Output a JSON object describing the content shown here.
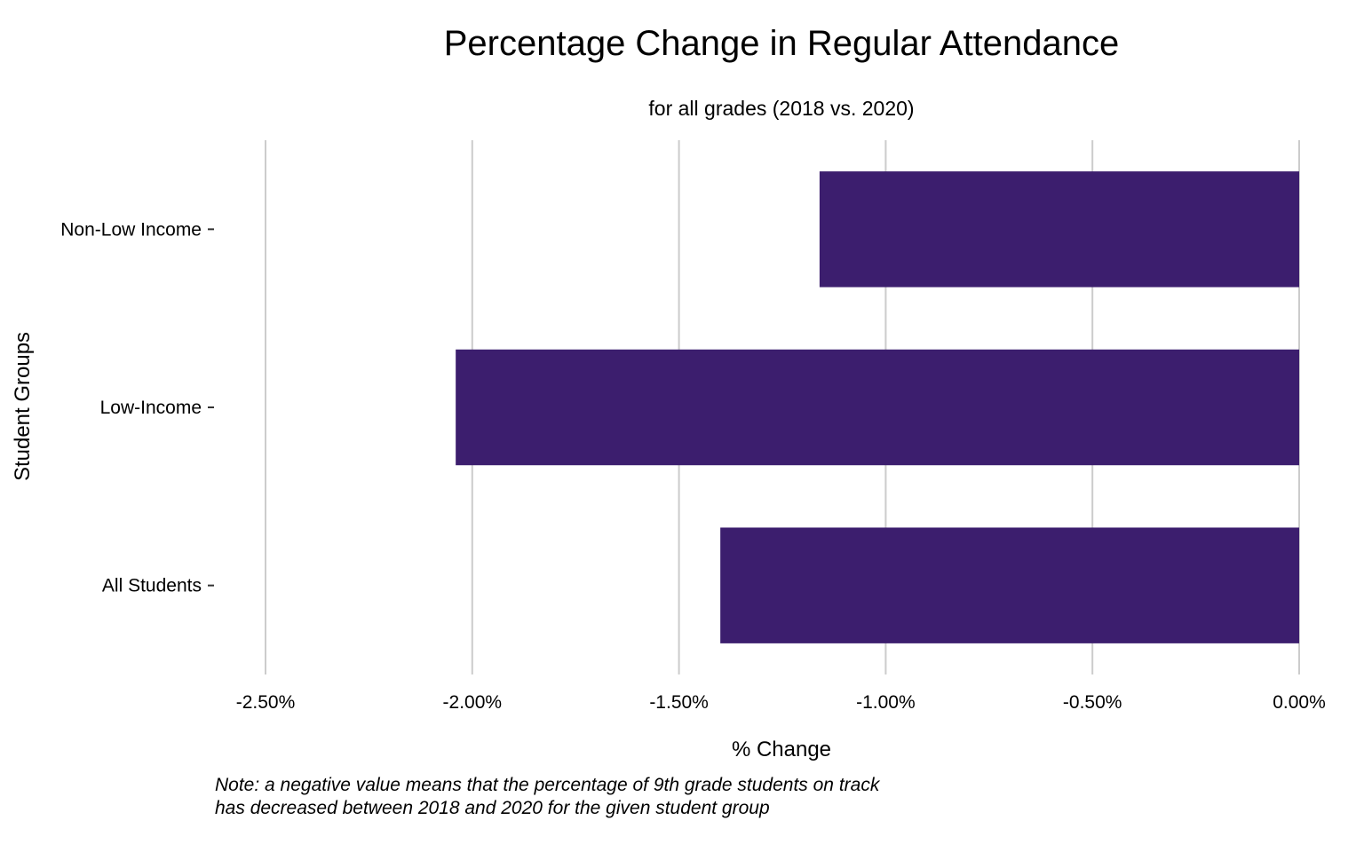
{
  "chart_data": {
    "type": "bar",
    "orientation": "horizontal",
    "title": "Percentage Change in Regular Attendance",
    "subtitle": "for all grades (2018 vs. 2020)",
    "xlabel": "% Change",
    "ylabel": "Student Groups",
    "categories": [
      "Non-Low Income",
      "Low-Income",
      "All Students"
    ],
    "values": [
      -1.16,
      -2.04,
      -1.4
    ],
    "xlim": [
      -2.5,
      0
    ],
    "x_ticks": [
      -2.5,
      -2.0,
      -1.5,
      -1.0,
      -0.5,
      0.0
    ],
    "x_tick_labels": [
      "-2.50%",
      "-2.00%",
      "-1.50%",
      "-1.00%",
      "-0.50%",
      "0.00%"
    ],
    "bar_color": "#3c1e6e",
    "grid": "vertical-major",
    "note": [
      "Note: a negative value means that the percentage of 9th grade students on track",
      "has decreased between 2018 and 2020 for the given student group"
    ]
  }
}
